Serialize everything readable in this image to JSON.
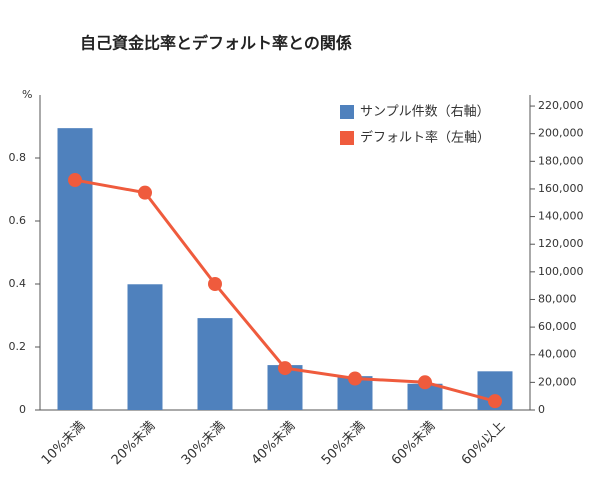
{
  "chart_data": {
    "type": "bar_line",
    "title": "自己資金比率とデフォルト率との関係",
    "y_label": "%",
    "categories": [
      "10%未満",
      "20%未満",
      "30%未満",
      "40%未満",
      "50%未満",
      "60%未満",
      "60%以上"
    ],
    "series": [
      {
        "name": "サンプル件数（右軸）",
        "type": "bar",
        "axis": "y2",
        "color": "#4f81bd",
        "values": [
          204000,
          91000,
          66500,
          32500,
          24500,
          19000,
          28000
        ]
      },
      {
        "name": "デフォルト率（左軸）",
        "type": "line",
        "axis": "y",
        "color": "#ef5b3d",
        "values": [
          0.73,
          0.69,
          0.4,
          0.133,
          0.1,
          0.088,
          0.028
        ]
      }
    ],
    "ylim": [
      0,
      1
    ],
    "yticks": [
      0,
      0.2,
      0.4,
      0.6,
      0.8
    ],
    "y2lim": [
      0,
      228000
    ],
    "y2ticks": [
      0,
      {
        "value": 20000,
        "label": "20,000"
      },
      {
        "value": 40000,
        "label": "40,000"
      },
      {
        "value": 60000,
        "label": "60,000"
      },
      {
        "value": 80000,
        "label": "80,000"
      },
      {
        "value": 100000,
        "label": "100,000"
      },
      {
        "value": 120000,
        "label": "120,000"
      },
      {
        "value": 140000,
        "label": "140,000"
      },
      {
        "value": 160000,
        "label": "160,000"
      },
      {
        "value": 180000,
        "label": "180,000"
      },
      {
        "value": 200000,
        "label": "200,000"
      },
      {
        "value": 220000,
        "label": "220,000"
      }
    ],
    "legend": "top-right"
  }
}
